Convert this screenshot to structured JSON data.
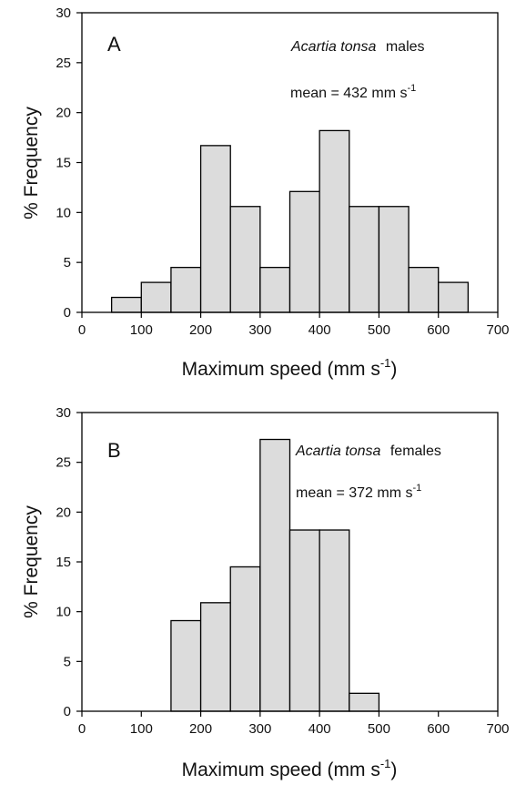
{
  "chart_data": [
    {
      "type": "bar",
      "panel_label": "A",
      "species": "Acartia tonsa",
      "sex_label": "males",
      "mean_text": "mean = 432 mm s",
      "mean_unit_exp": "-1",
      "xlabel": "Maximum  speed (mm s",
      "xlabel_exp": "-1",
      "xlabel_close": ")",
      "ylabel": "% Frequency",
      "xlim": [
        0,
        700
      ],
      "ylim": [
        0,
        30
      ],
      "xticks": [
        0,
        100,
        200,
        300,
        400,
        500,
        600,
        700
      ],
      "yticks": [
        0,
        5,
        10,
        15,
        20,
        25,
        30
      ],
      "bin_width": 50,
      "bins": [
        {
          "x0": 50,
          "value": 1.5
        },
        {
          "x0": 100,
          "value": 3.0
        },
        {
          "x0": 150,
          "value": 4.5
        },
        {
          "x0": 200,
          "value": 16.7
        },
        {
          "x0": 250,
          "value": 10.6
        },
        {
          "x0": 300,
          "value": 4.5
        },
        {
          "x0": 350,
          "value": 12.1
        },
        {
          "x0": 400,
          "value": 18.2
        },
        {
          "x0": 450,
          "value": 10.6
        },
        {
          "x0": 500,
          "value": 10.6
        },
        {
          "x0": 550,
          "value": 4.5
        },
        {
          "x0": 600,
          "value": 3.0
        }
      ]
    },
    {
      "type": "bar",
      "panel_label": "B",
      "species": "Acartia tonsa",
      "sex_label": "females",
      "mean_text": "mean = 372 mm s",
      "mean_unit_exp": "-1",
      "xlabel": "Maximum  speed (mm s",
      "xlabel_exp": "-1",
      "xlabel_close": ")",
      "ylabel": "% Frequency",
      "xlim": [
        0,
        700
      ],
      "ylim": [
        0,
        30
      ],
      "xticks": [
        0,
        100,
        200,
        300,
        400,
        500,
        600,
        700
      ],
      "yticks": [
        0,
        5,
        10,
        15,
        20,
        25,
        30
      ],
      "bin_width": 50,
      "bins": [
        {
          "x0": 150,
          "value": 9.1
        },
        {
          "x0": 200,
          "value": 10.9
        },
        {
          "x0": 250,
          "value": 14.5
        },
        {
          "x0": 300,
          "value": 27.3
        },
        {
          "x0": 350,
          "value": 18.2
        },
        {
          "x0": 400,
          "value": 18.2
        },
        {
          "x0": 450,
          "value": 1.8
        }
      ]
    }
  ]
}
